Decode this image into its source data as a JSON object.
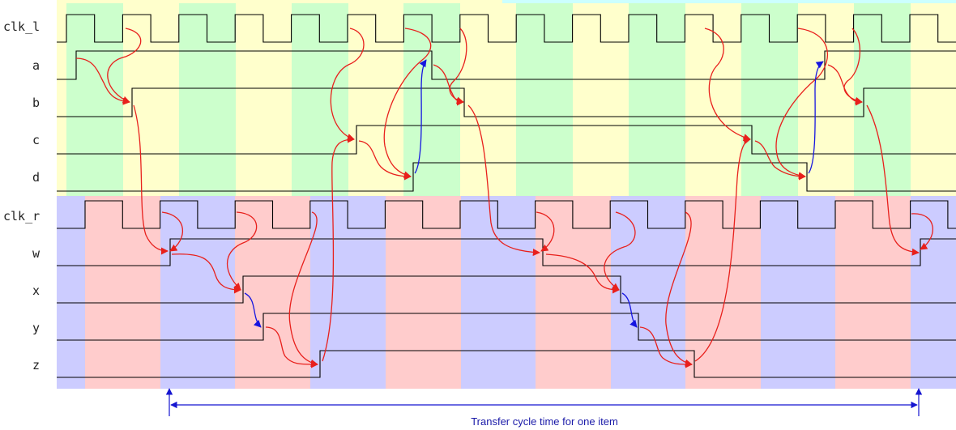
{
  "left_domain": {
    "clock": "clk_l",
    "signals": [
      "a",
      "b",
      "c",
      "d"
    ],
    "band_colors": [
      "#ffffcc",
      "#ccffcc"
    ]
  },
  "right_domain": {
    "clock": "clk_r",
    "signals": [
      "w",
      "x",
      "y",
      "z"
    ],
    "band_colors": [
      "#ccccff",
      "#ffcccc"
    ]
  },
  "colors": {
    "causal_arrow": "#e8201c",
    "sync_arrow": "#1515e0",
    "dimension": "#1515d0"
  },
  "annotation": {
    "caption": "Transfer cycle time for one item"
  }
}
